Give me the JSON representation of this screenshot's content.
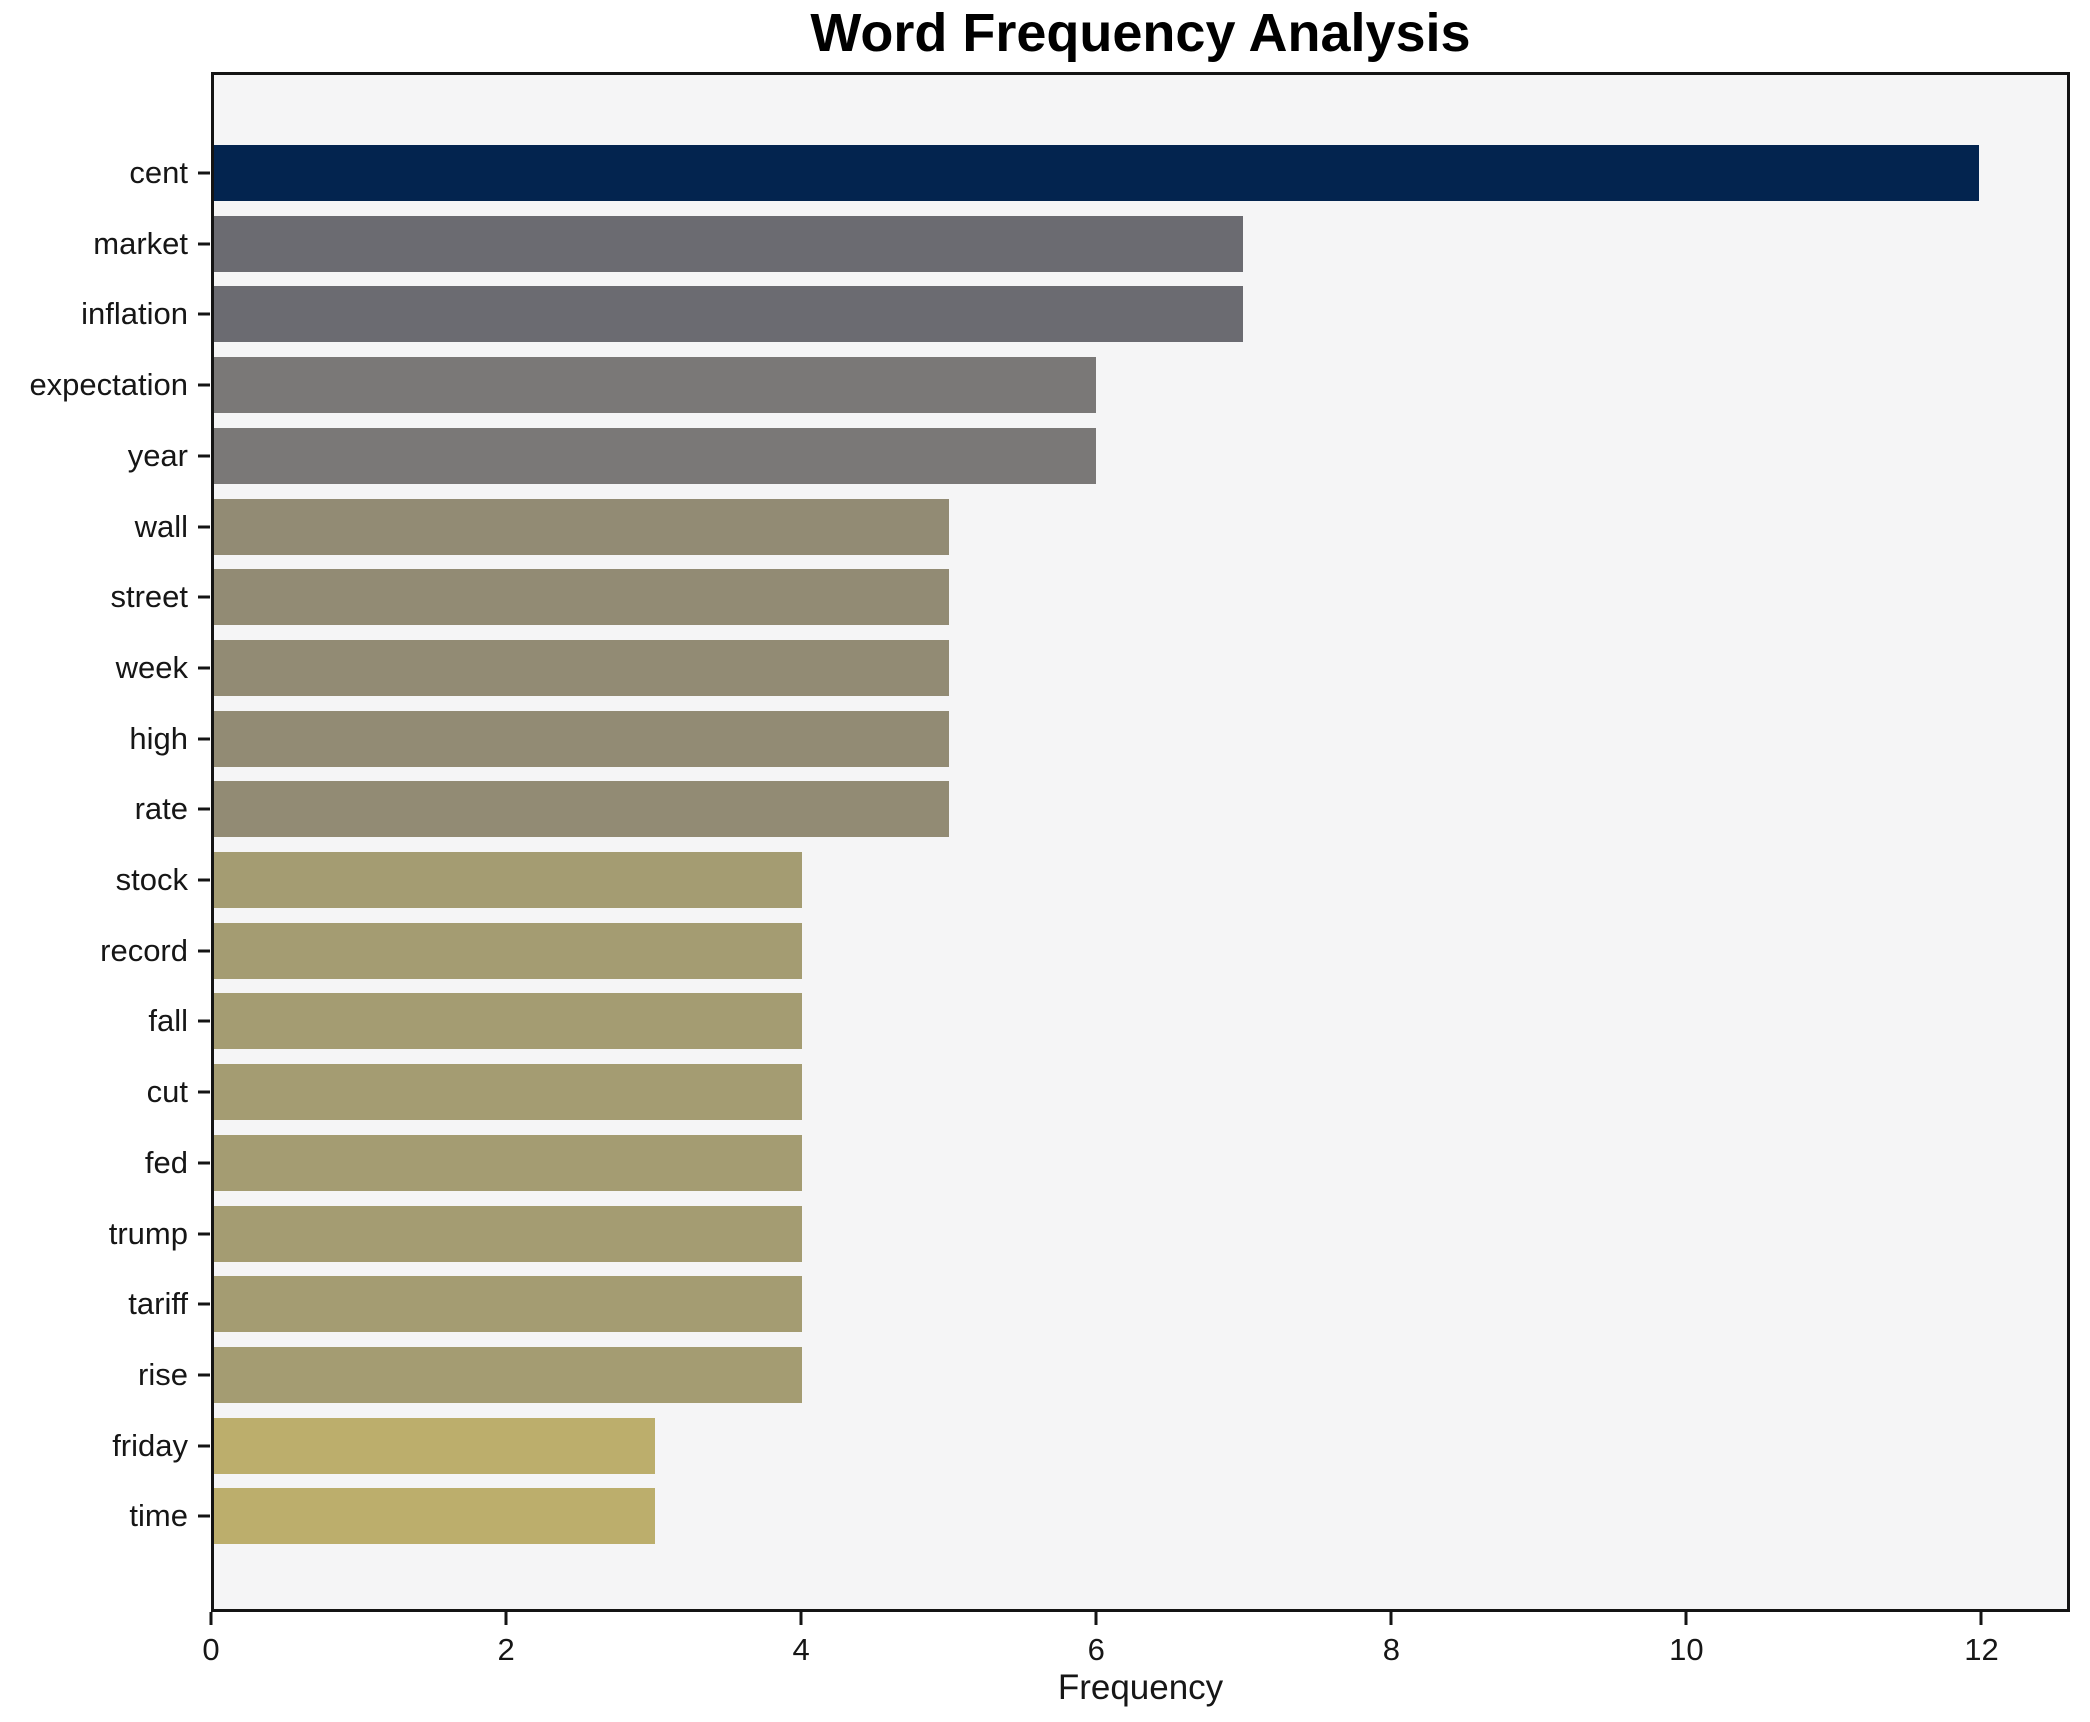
{
  "chart_data": {
    "type": "bar",
    "orientation": "horizontal",
    "title": "Word Frequency Analysis",
    "xlabel": "Frequency",
    "ylabel": "",
    "categories": [
      "cent",
      "market",
      "inflation",
      "expectation",
      "year",
      "wall",
      "street",
      "week",
      "high",
      "rate",
      "stock",
      "record",
      "fall",
      "cut",
      "fed",
      "trump",
      "tariff",
      "rise",
      "friday",
      "time"
    ],
    "values": [
      12,
      7,
      7,
      6,
      6,
      5,
      5,
      5,
      5,
      5,
      4,
      4,
      4,
      4,
      4,
      4,
      4,
      4,
      3,
      3
    ],
    "bar_colors": [
      "#03244f",
      "#6b6b71",
      "#6b6b71",
      "#7a7877",
      "#7a7877",
      "#928b74",
      "#928b74",
      "#928b74",
      "#928b74",
      "#928b74",
      "#a49c72",
      "#a49c72",
      "#a49c72",
      "#a49c72",
      "#a49c72",
      "#a49c72",
      "#a49c72",
      "#a49c72",
      "#bcae6c",
      "#bcae6c"
    ],
    "xlim": [
      0,
      12.6
    ],
    "xticks": [
      0,
      2,
      4,
      6,
      8,
      10,
      12
    ],
    "grid": false,
    "legend_position": "none",
    "plot_background": "#f5f5f6",
    "figure_background": "#ffffff",
    "accent_color_high": "#03244f",
    "accent_color_low": "#bcae6c"
  }
}
